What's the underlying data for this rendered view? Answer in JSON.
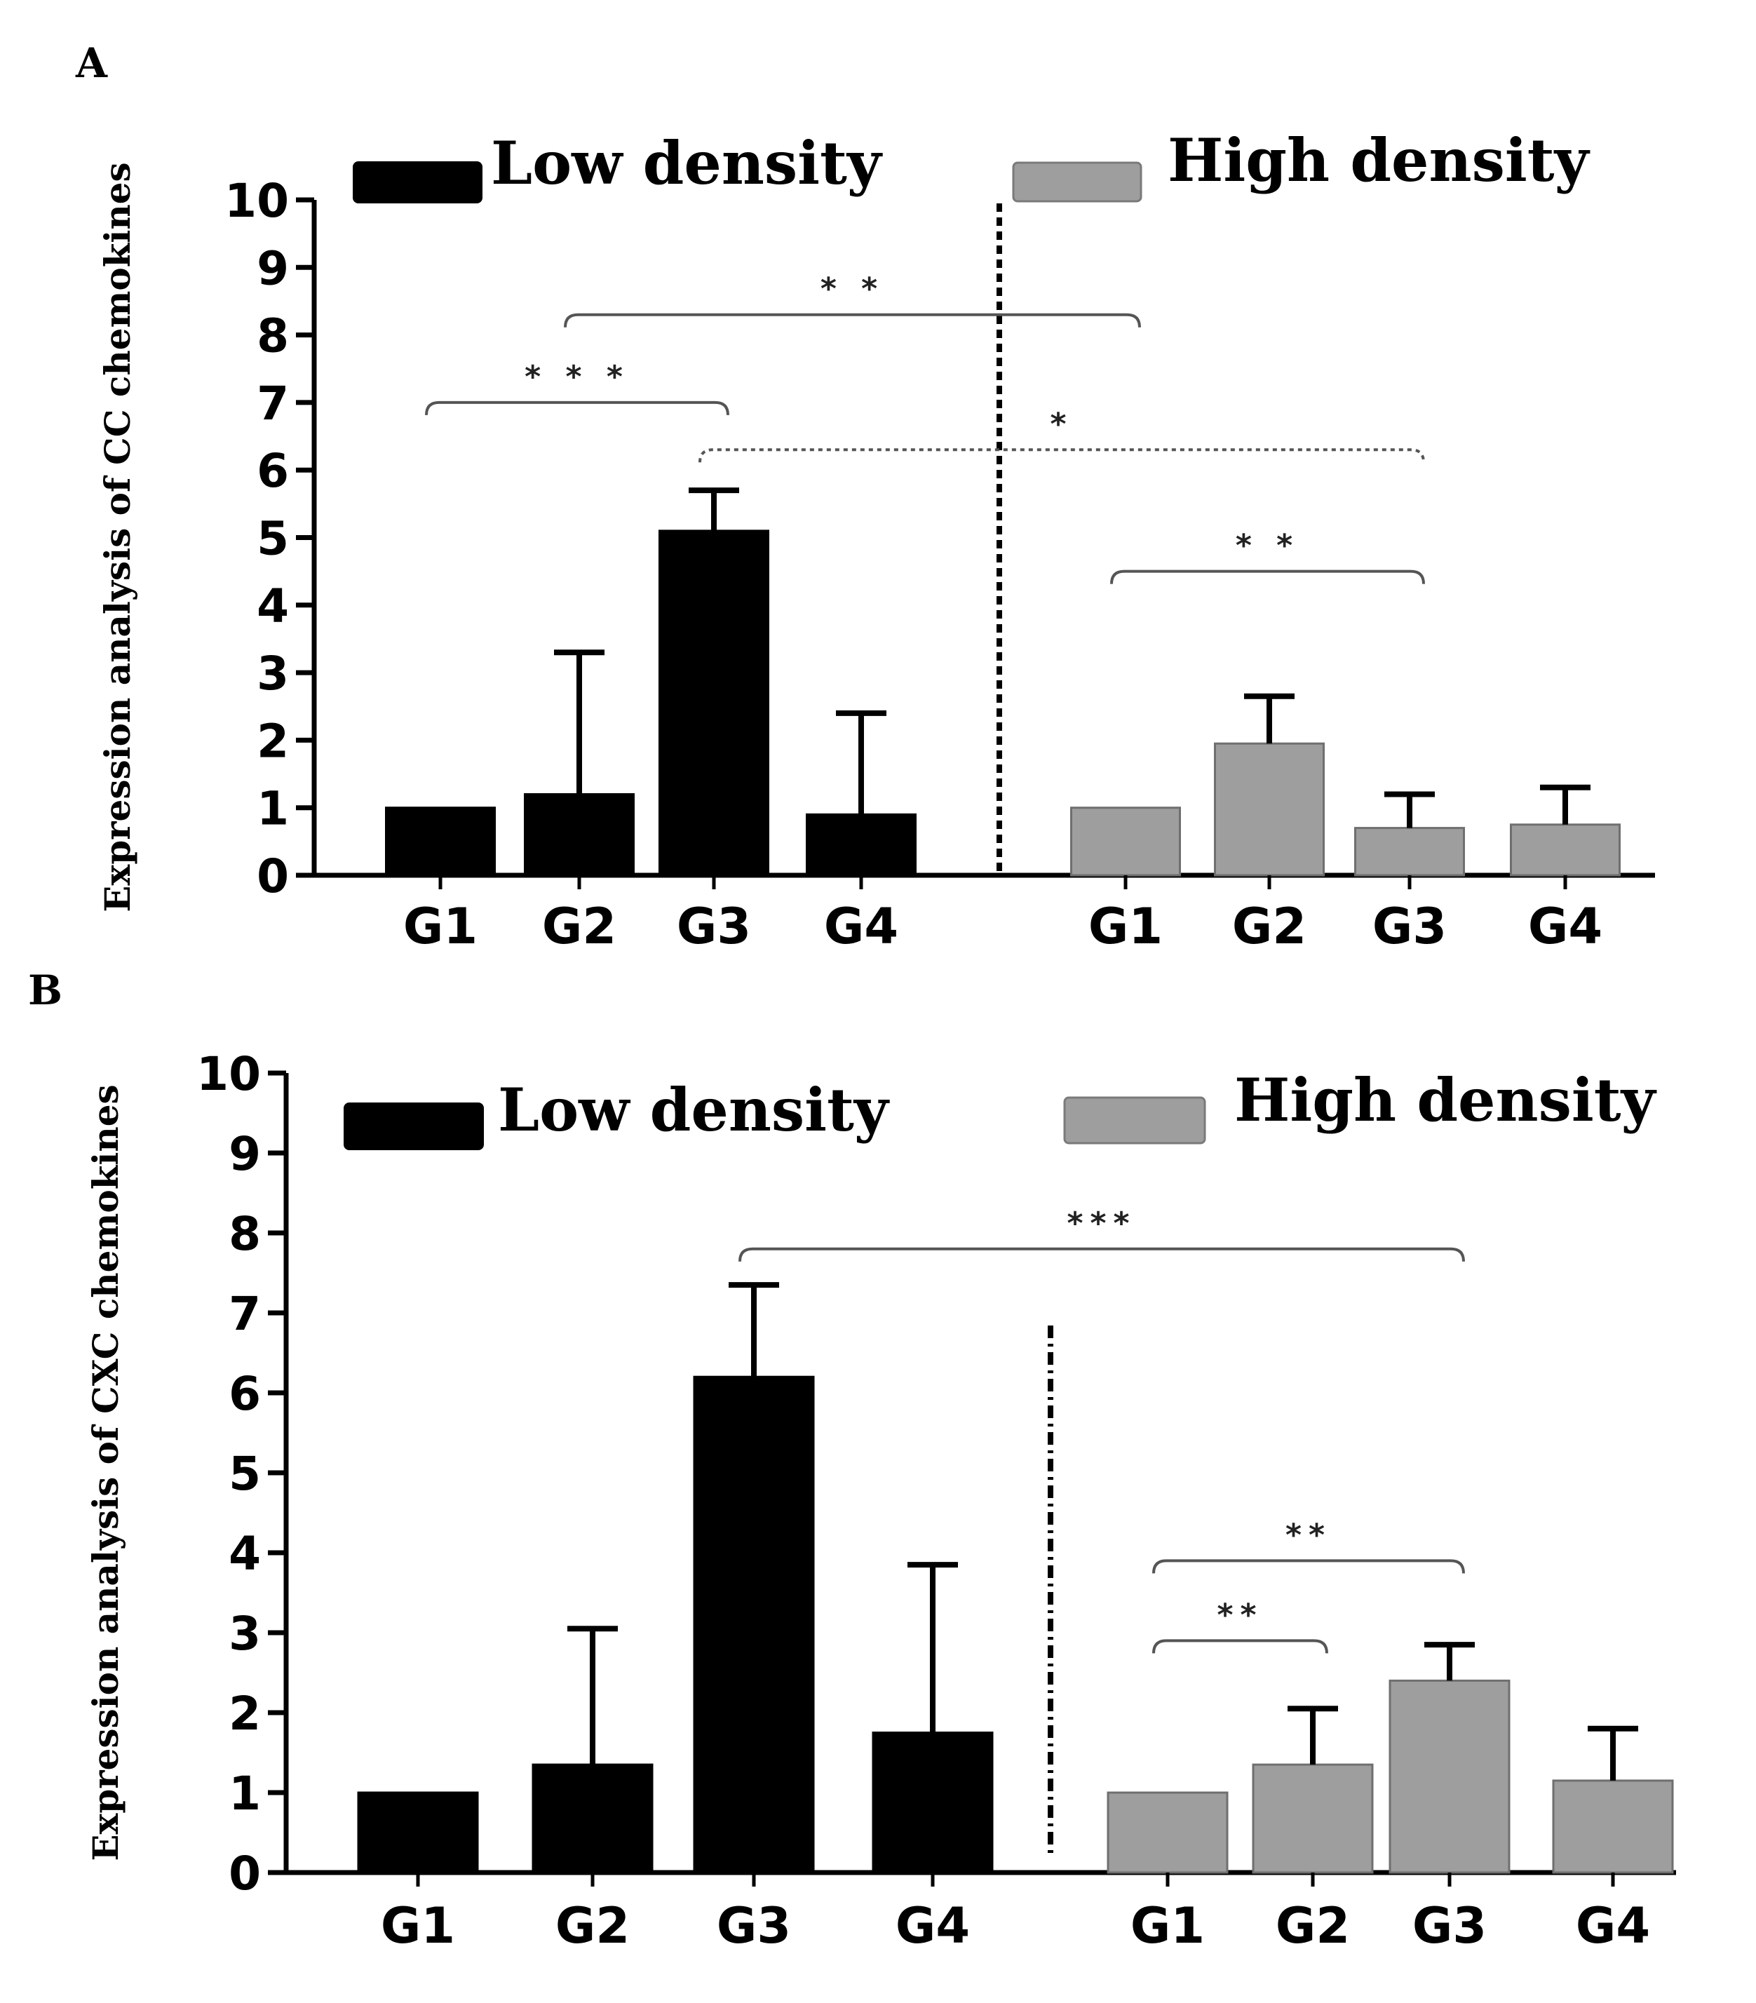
{
  "colors": {
    "low": "#000000",
    "high": "#9e9e9e",
    "axis": "#000000",
    "bracket": "#555555"
  },
  "chart_data": [
    {
      "panel": "A",
      "type": "bar",
      "ylabel": "Expression analysis of CC chemokines",
      "ylim": [
        0,
        10
      ],
      "yticks": [
        "0",
        "1",
        "2",
        "3",
        "4",
        "5",
        "6",
        "7",
        "8",
        "9",
        "10"
      ],
      "legend": {
        "low": "Low density",
        "high": "High density"
      },
      "series": [
        {
          "name": "Low density",
          "color_key": "low",
          "categories": [
            "G1",
            "G2",
            "G3",
            "G4"
          ],
          "values": [
            1.0,
            1.2,
            5.1,
            0.9
          ],
          "errors": [
            0,
            2.1,
            0.6,
            1.5
          ]
        },
        {
          "name": "High density",
          "color_key": "high",
          "categories": [
            "G1",
            "G2",
            "G3",
            "G4"
          ],
          "values": [
            1.0,
            1.95,
            0.7,
            0.75
          ],
          "errors": [
            0,
            0.7,
            0.5,
            0.55
          ]
        }
      ],
      "significance": [
        {
          "label": "* * *",
          "from": "Low density G1",
          "to": "Low density G3",
          "level": 7.0,
          "style": "solid"
        },
        {
          "label": "* *",
          "from": "Low density G2",
          "to": "High density G1",
          "level": 8.3,
          "style": "solid"
        },
        {
          "label": "*",
          "from": "Low density G3",
          "to": "High density G3",
          "level": 6.3,
          "style": "dotted"
        },
        {
          "label": "* *",
          "from": "High density G1",
          "to": "High density G3",
          "level": 4.5,
          "style": "solid"
        }
      ]
    },
    {
      "panel": "B",
      "type": "bar",
      "ylabel": "Expression analysis of CXC chemokines",
      "ylim": [
        0,
        10
      ],
      "yticks": [
        "0",
        "1",
        "2",
        "3",
        "4",
        "5",
        "6",
        "7",
        "8",
        "9",
        "10"
      ],
      "legend": {
        "low": "Low density",
        "high": "High density"
      },
      "series": [
        {
          "name": "Low density",
          "color_key": "low",
          "categories": [
            "G1",
            "G2",
            "G3",
            "G4"
          ],
          "values": [
            1.0,
            1.35,
            6.2,
            1.75
          ],
          "errors": [
            0,
            1.7,
            1.15,
            2.1
          ]
        },
        {
          "name": "High density",
          "color_key": "high",
          "categories": [
            "G1",
            "G2",
            "G3",
            "G4"
          ],
          "values": [
            1.0,
            1.35,
            2.4,
            1.15
          ],
          "errors": [
            0,
            0.7,
            0.45,
            0.65
          ]
        }
      ],
      "significance": [
        {
          "label": "***",
          "from": "Low density G3",
          "to": "High density G3",
          "level": 7.8,
          "style": "solid"
        },
        {
          "label": "**",
          "from": "High density G1",
          "to": "High density G3",
          "level": 3.9,
          "style": "solid"
        },
        {
          "label": "**",
          "from": "High density G1",
          "to": "High density G2",
          "level": 2.9,
          "style": "solid"
        }
      ]
    }
  ]
}
